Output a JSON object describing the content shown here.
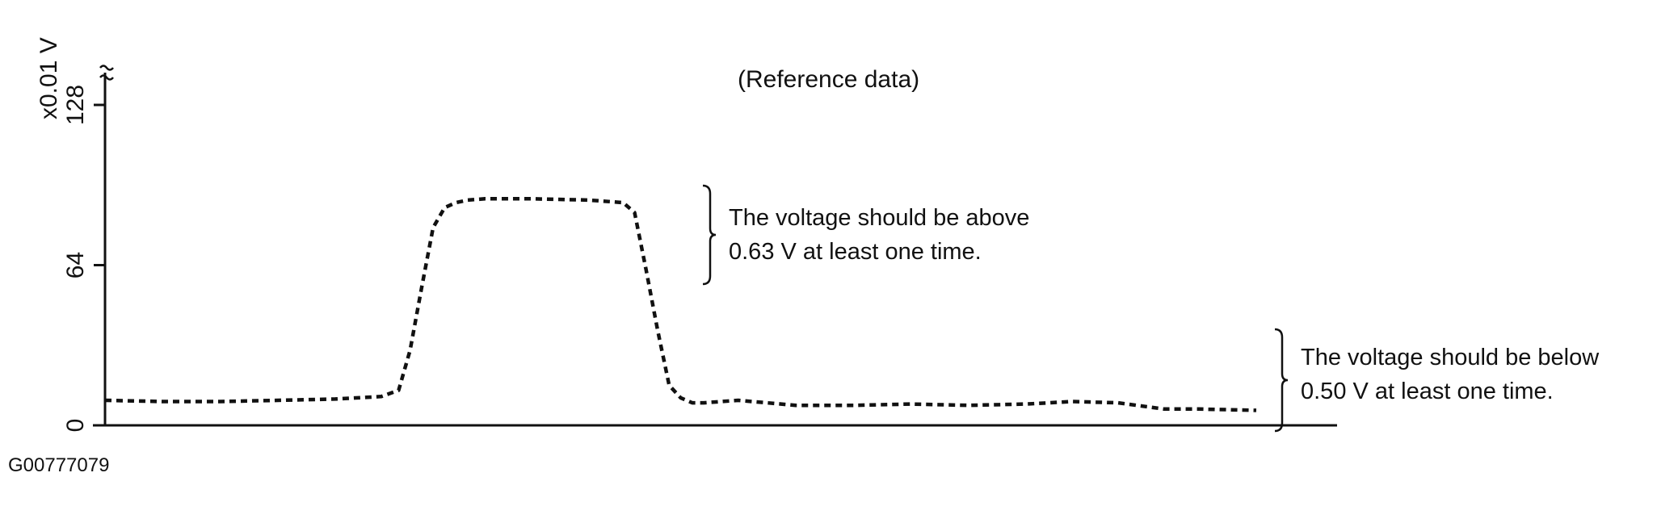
{
  "chart_data": {
    "type": "line",
    "title": "(Reference data)",
    "ylabel": "x0.01 V",
    "yticks": [
      0,
      64,
      128
    ],
    "ylim": [
      0,
      128
    ],
    "xlim": [
      0,
      100
    ],
    "grid": false,
    "series": [
      {
        "line_style": "dashed",
        "x": [
          0,
          5,
          10,
          15,
          20,
          24,
          25.5,
          26.5,
          27.5,
          28.5,
          29.5,
          30.5,
          31.5,
          33,
          37,
          42,
          45,
          46,
          47,
          48,
          49,
          50,
          51,
          52,
          55,
          60,
          65,
          70,
          75,
          80,
          82,
          84,
          88,
          92,
          94,
          95,
          100
        ],
        "y": [
          10,
          9.5,
          9.5,
          10,
          10.5,
          11.5,
          14,
          30,
          55,
          79,
          87,
          89,
          90,
          90.5,
          90.5,
          90,
          89,
          85,
          62,
          38,
          16,
          11,
          9,
          9,
          10,
          8,
          8,
          8.5,
          8,
          8.5,
          9,
          9.5,
          9,
          6.5,
          6.5,
          6.5,
          6
        ]
      }
    ],
    "annotations": [
      {
        "text_lines": [
          "The voltage should be above",
          "0.63 V at least one time."
        ],
        "bracket_from": 58,
        "bracket_to": 94
      },
      {
        "text_lines": [
          "The voltage should be below",
          "0.50 V at least one time."
        ],
        "bracket_from": 2,
        "bracket_to": 39
      }
    ]
  },
  "figure_id": "G00777079"
}
